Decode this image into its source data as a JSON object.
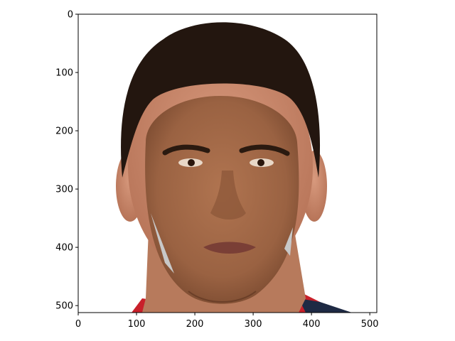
{
  "figure": {
    "image": {
      "description": "face-swap photo composite: a man's face pasted over another man's head with dark short hair, red and navy collar visible at bottom",
      "colors": {
        "hair": "#23160f",
        "outer_skin": "#c98a6e",
        "inner_face": "#9a6242",
        "forehead_patch": "#c8876a",
        "shirt_red": "#c8202a",
        "shirt_navy": "#1e2a44",
        "background": "#ffffff"
      }
    },
    "x_axis": {
      "ticks": [
        "0",
        "100",
        "200",
        "300",
        "400",
        "500"
      ],
      "range": [
        0,
        512
      ]
    },
    "y_axis": {
      "ticks": [
        "0",
        "100",
        "200",
        "300",
        "400",
        "500"
      ],
      "range": [
        0,
        512
      ],
      "inverted": true
    }
  }
}
